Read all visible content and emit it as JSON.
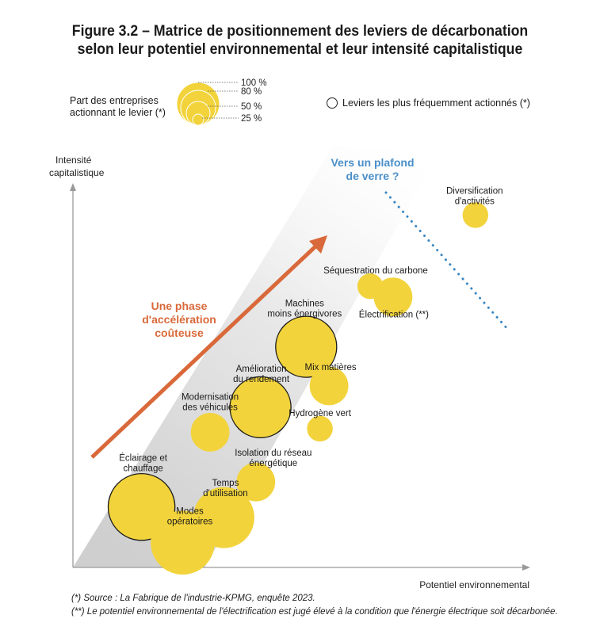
{
  "title_line1": "Figure 3.2 – Matrice de positionnement des leviers de décarbonation",
  "title_line2": "selon leur potentiel environnemental et leur intensité capitalistique",
  "legend": {
    "size_label_line1": "Part des entreprises",
    "size_label_line2": "actionnant le levier (*)",
    "size_ticks": [
      "100 %",
      "80 %",
      "50 %",
      "25 %"
    ],
    "ring_label": "Leviers les plus fréquemment actionnés (*)"
  },
  "annotations": {
    "plafond_line1": "Vers un plafond",
    "plafond_line2": "de verre ?",
    "phase_line1": "Une phase",
    "phase_line2": "d'accélération",
    "phase_line3": "coûteuse"
  },
  "colors": {
    "bubble": "#f2d33b",
    "band": "#d6d6d6",
    "arrow": "#d9693a",
    "ceiling": "#3a86c1",
    "axis": "#9a9a9a"
  },
  "chart_data": {
    "type": "scatter",
    "title": "Figure 3.2 – Matrice de positionnement des leviers de décarbonation selon leur potentiel environnemental et leur intensité capitalistique",
    "xlabel": "Potentiel environnemental",
    "ylabel": "Intensité capitalistique",
    "size_encoding": "Part des entreprises actionnant le levier (*)",
    "points": [
      {
        "label": "Éclairage et chauffage",
        "x": 0.15,
        "y": 0.17,
        "size": 0.55,
        "frequent": true
      },
      {
        "label": "Modes opératoires",
        "x": 0.24,
        "y": 0.07,
        "size": 0.5,
        "frequent": false
      },
      {
        "label": "Temps d'utilisation",
        "x": 0.33,
        "y": 0.14,
        "size": 0.45,
        "frequent": false
      },
      {
        "label": "Isolation du réseau énergétique",
        "x": 0.4,
        "y": 0.24,
        "size": 0.15,
        "frequent": false
      },
      {
        "label": "Modernisation des véhicules",
        "x": 0.3,
        "y": 0.38,
        "size": 0.15,
        "frequent": false
      },
      {
        "label": "Amélioration du rendement",
        "x": 0.41,
        "y": 0.45,
        "size": 0.45,
        "frequent": true
      },
      {
        "label": "Machines moins énergivores",
        "x": 0.51,
        "y": 0.62,
        "size": 0.45,
        "frequent": true
      },
      {
        "label": "Mix matières",
        "x": 0.56,
        "y": 0.51,
        "size": 0.15,
        "frequent": false
      },
      {
        "label": "Hydrogène vert",
        "x": 0.54,
        "y": 0.39,
        "size": 0.05,
        "frequent": false
      },
      {
        "label": "Séquestration du carbone",
        "x": 0.65,
        "y": 0.79,
        "size": 0.05,
        "frequent": false
      },
      {
        "label": "Électrification (**)",
        "x": 0.7,
        "y": 0.76,
        "size": 0.15,
        "frequent": false
      },
      {
        "label": "Diversification d'activités",
        "x": 0.88,
        "y": 0.99,
        "size": 0.05,
        "frequent": false
      }
    ],
    "xlim": [
      0,
      1
    ],
    "ylim": [
      0,
      1.08
    ],
    "grid": false,
    "legend_position": "top"
  },
  "footnotes": {
    "f1": "(*) Source : La Fabrique de l'industrie-KPMG, enquête 2023.",
    "f2": "(**) Le potentiel environnemental de l'électrification est jugé élevé à la condition que l'énergie électrique soit décarbonée."
  }
}
